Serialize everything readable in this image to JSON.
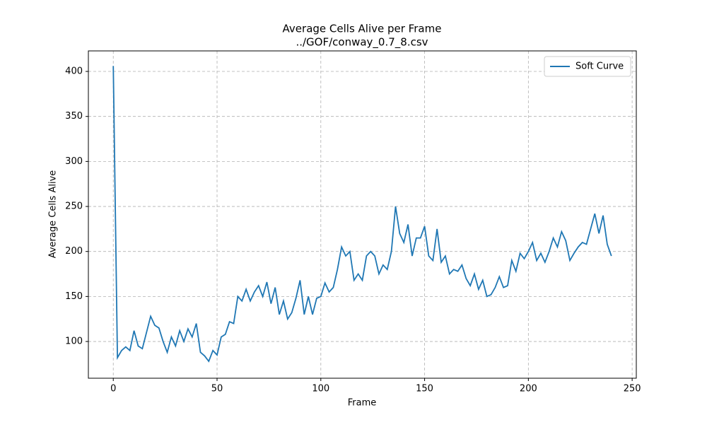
{
  "chart_data": {
    "type": "line",
    "title": "Average Cells Alive per Frame",
    "subtitle": "../GOF/conway_0.7_8.csv",
    "x_label": "Frame",
    "y_label": "Average Cells Alive",
    "x": [
      0,
      2,
      4,
      6,
      8,
      10,
      12,
      14,
      16,
      18,
      20,
      22,
      24,
      26,
      28,
      30,
      32,
      34,
      36,
      38,
      40,
      42,
      44,
      46,
      48,
      50,
      52,
      54,
      56,
      58,
      60,
      62,
      64,
      66,
      68,
      70,
      72,
      74,
      76,
      78,
      80,
      82,
      84,
      86,
      88,
      90,
      92,
      94,
      96,
      98,
      100,
      102,
      104,
      106,
      108,
      110,
      112,
      114,
      116,
      118,
      120,
      122,
      124,
      126,
      128,
      130,
      132,
      134,
      136,
      138,
      140,
      142,
      144,
      146,
      148,
      150,
      152,
      154,
      156,
      158,
      160,
      162,
      164,
      166,
      168,
      170,
      172,
      174,
      176,
      178,
      180,
      182,
      184,
      186,
      188,
      190,
      192,
      194,
      196,
      198,
      200,
      202,
      204,
      206,
      208,
      210,
      212,
      214,
      216,
      218,
      220,
      222,
      224,
      226,
      228,
      230,
      232,
      234,
      236,
      238,
      240
    ],
    "series": [
      {
        "name": "Soft Curve",
        "color": "#1f77b4",
        "values": [
          406,
          82,
          90,
          94,
          90,
          112,
          95,
          92,
          110,
          128,
          118,
          115,
          100,
          88,
          105,
          95,
          112,
          100,
          114,
          105,
          120,
          88,
          84,
          78,
          90,
          85,
          105,
          108,
          122,
          120,
          150,
          145,
          158,
          145,
          155,
          162,
          150,
          166,
          142,
          160,
          130,
          145,
          125,
          132,
          148,
          168,
          130,
          150,
          130,
          148,
          150,
          165,
          155,
          160,
          180,
          205,
          195,
          200,
          168,
          175,
          168,
          195,
          200,
          195,
          175,
          185,
          180,
          200,
          250,
          220,
          210,
          230,
          195,
          215,
          215,
          228,
          195,
          190,
          225,
          188,
          195,
          175,
          180,
          178,
          185,
          170,
          162,
          175,
          158,
          168,
          150,
          152,
          160,
          172,
          160,
          162,
          190,
          178,
          198,
          192,
          200,
          210,
          190,
          198,
          188,
          200,
          215,
          205,
          222,
          212,
          190,
          198,
          205,
          210,
          208,
          225,
          242,
          220,
          240,
          208,
          195
        ]
      }
    ],
    "xlim": [
      -12,
      252
    ],
    "ylim": [
      59.2,
      422.8
    ],
    "xticks": [
      0,
      50,
      100,
      150,
      200,
      250
    ],
    "yticks": [
      100,
      150,
      200,
      250,
      300,
      350,
      400
    ],
    "grid": true,
    "legend": "upper right"
  }
}
